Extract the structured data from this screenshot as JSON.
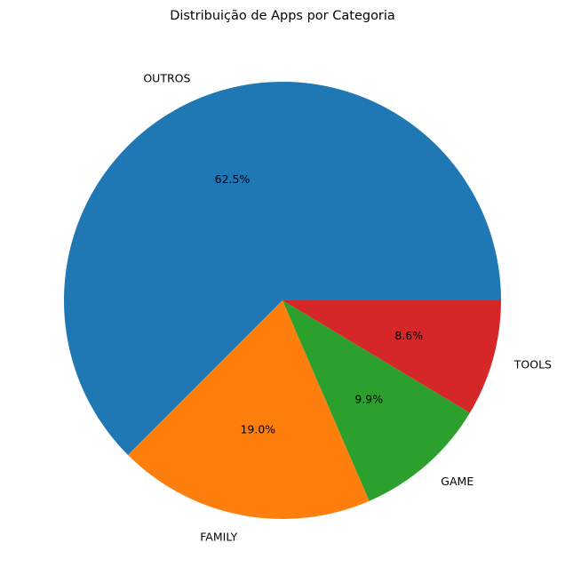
{
  "chart_data": {
    "type": "pie",
    "title": "Distribuição de Apps por Categoria",
    "categories": [
      "OUTROS",
      "FAMILY",
      "GAME",
      "TOOLS"
    ],
    "values": [
      62.5,
      19.0,
      9.9,
      8.6
    ],
    "value_labels": [
      "62.5%",
      "19.0%",
      "9.9%",
      "8.6%"
    ],
    "colors": [
      "#1f77b4",
      "#ff7f0e",
      "#2ca02c",
      "#d62728"
    ],
    "start_angle_deg": 0,
    "direction": "counterclockwise",
    "legend": "none"
  }
}
